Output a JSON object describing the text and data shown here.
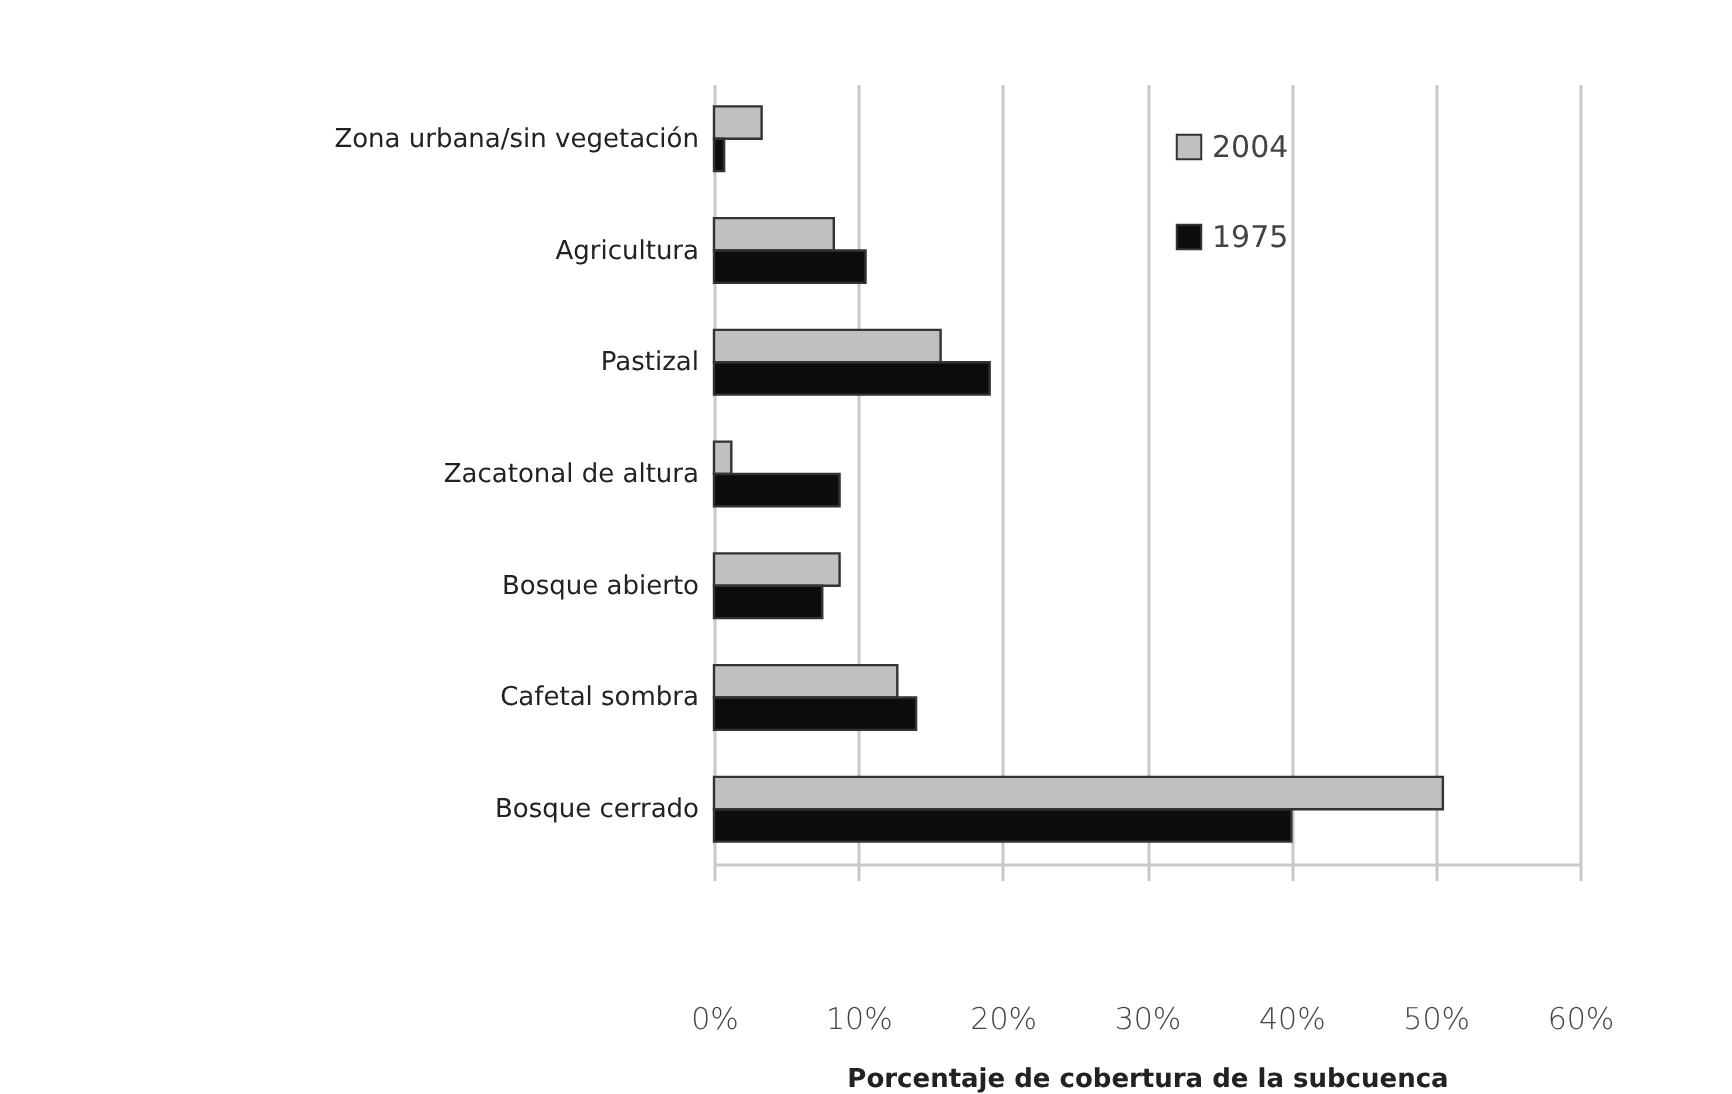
{
  "chart_data": {
    "type": "bar",
    "orientation": "horizontal",
    "xlabel": "Porcentaje de cobertura de la subcuenca",
    "categories": [
      "Zona urbana/sin vegetación",
      "Agricultura",
      "Pastizal",
      "Zacatonal de altura",
      "Bosque abierto",
      "Cafetal sombra",
      "Bosque cerrado"
    ],
    "series": [
      {
        "name": "2004",
        "color": "#c0c0c0",
        "values": [
          3.3,
          8.3,
          15.7,
          1.2,
          8.7,
          12.7,
          50.5
        ]
      },
      {
        "name": "1975",
        "color": "#0d0d0d",
        "values": [
          0.7,
          10.5,
          19.1,
          8.7,
          7.5,
          14.0,
          40.0
        ]
      }
    ],
    "xlim": [
      0,
      60
    ],
    "xticks": [
      {
        "value": 0,
        "label": "0%"
      },
      {
        "value": 10,
        "label": "10%"
      },
      {
        "value": 20,
        "label": "20%"
      },
      {
        "value": 30,
        "label": "30%"
      },
      {
        "value": 40,
        "label": "40%"
      },
      {
        "value": 50,
        "label": "50%"
      },
      {
        "value": 60,
        "label": "60%"
      }
    ],
    "grid": "x",
    "legend": "top right"
  }
}
